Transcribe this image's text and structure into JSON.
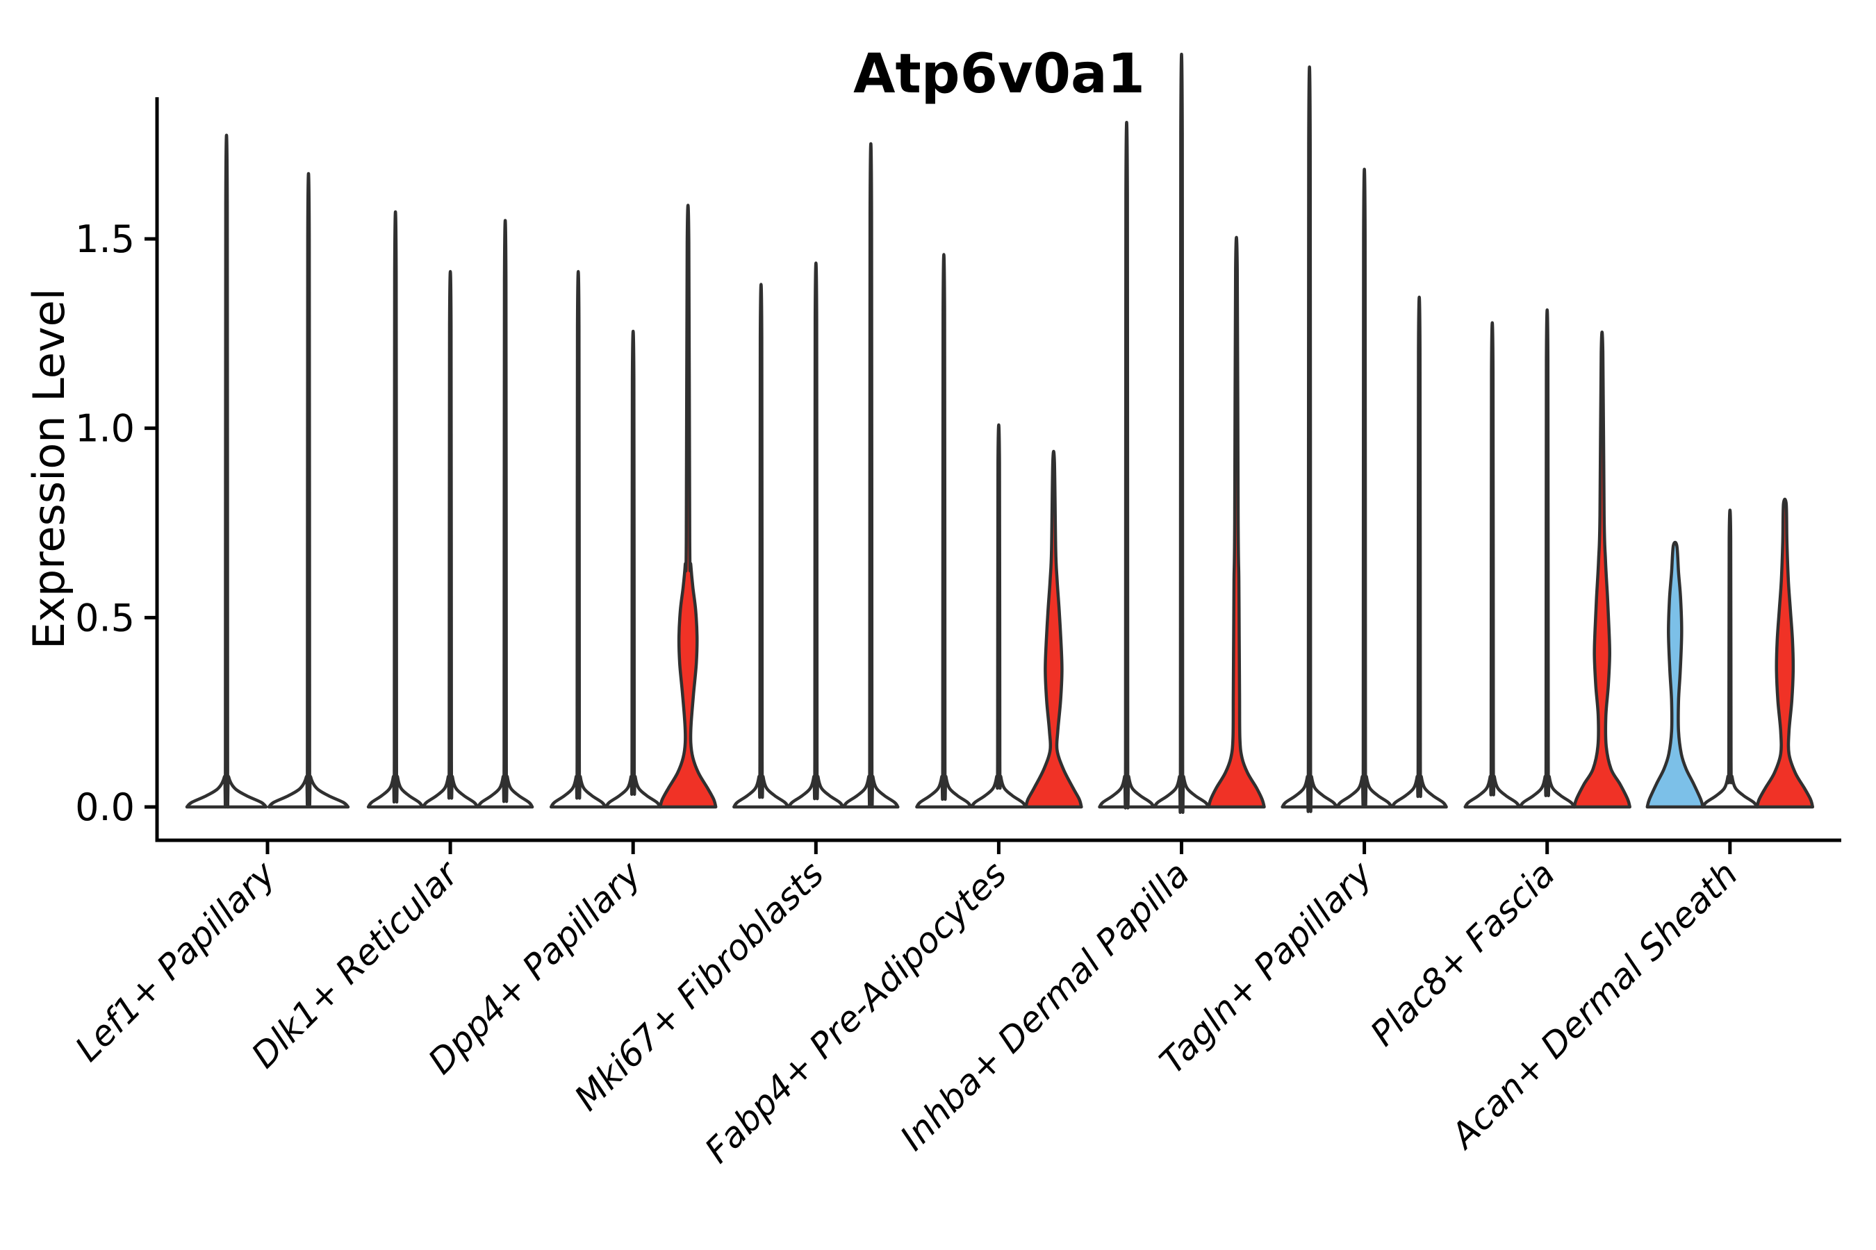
{
  "title": "Atp6v0a1",
  "chart_data": {
    "type": "violin",
    "title": "Atp6v0a1",
    "xlabel": "",
    "ylabel": "Expression Level",
    "yticks": [
      "0.0",
      "0.5",
      "1.0",
      "1.5"
    ],
    "ytick_values": [
      0.0,
      0.5,
      1.0,
      1.5
    ],
    "ylim": [
      -0.09,
      1.87
    ],
    "grid": "off",
    "legend": "none",
    "x_tick_rotation": 45,
    "colors": {
      "highlight_red": "#f03226",
      "highlight_blue": "#7cc0e8",
      "violin_outline": "#303030",
      "plain_fill": "#ffffff",
      "axis": "#000000"
    },
    "categories": [
      "Lef1+ Papillary",
      "Dlk1+ Reticular",
      "Dpp4+ Papillary",
      "Mki67+ Fibroblasts",
      "Fabp4+ Pre-Adipocytes",
      "Inhba+ Dermal Papilla",
      "Tagln+ Papillary",
      "Plac8+ Fascia",
      "Acan+ Dermal Sheath"
    ],
    "groups": [
      {
        "category": "Lef1+ Papillary",
        "violins": [
          {
            "max": 1.59,
            "color": "plain"
          },
          {
            "max": 1.5,
            "color": "plain"
          }
        ]
      },
      {
        "category": "Dlk1+ Reticular",
        "violins": [
          {
            "max": 1.41,
            "color": "plain"
          },
          {
            "max": 1.27,
            "color": "plain"
          },
          {
            "max": 1.39,
            "color": "plain"
          }
        ]
      },
      {
        "category": "Dpp4+ Papillary",
        "violins": [
          {
            "max": 1.27,
            "color": "plain"
          },
          {
            "max": 1.13,
            "color": "plain"
          },
          {
            "max": 1.49,
            "color": "red",
            "profile": [
              [
                0,
                40
              ],
              [
                0.02,
                37
              ],
              [
                0.05,
                28
              ],
              [
                0.09,
                15
              ],
              [
                0.13,
                7
              ],
              [
                0.17,
                4
              ],
              [
                0.22,
                4.5
              ],
              [
                0.3,
                8
              ],
              [
                0.38,
                12
              ],
              [
                0.45,
                13
              ],
              [
                0.52,
                11
              ],
              [
                0.58,
                7
              ],
              [
                0.64,
                4
              ],
              [
                0.7,
                2.5
              ],
              [
                1.49,
                1.2
              ]
            ]
          }
        ]
      },
      {
        "category": "Mki67+ Fibroblasts",
        "violins": [
          {
            "max": 1.24,
            "color": "plain"
          },
          {
            "max": 1.29,
            "color": "plain"
          },
          {
            "max": 1.57,
            "color": "plain"
          }
        ]
      },
      {
        "category": "Fabp4+ Pre-Adipocytes",
        "violins": [
          {
            "max": 1.31,
            "color": "plain"
          },
          {
            "max": 0.91,
            "color": "plain"
          },
          {
            "max": 0.91,
            "color": "red",
            "profile": [
              [
                0,
                40
              ],
              [
                0.02,
                37
              ],
              [
                0.05,
                28
              ],
              [
                0.1,
                14
              ],
              [
                0.15,
                5
              ],
              [
                0.2,
                6
              ],
              [
                0.28,
                10
              ],
              [
                0.36,
                12
              ],
              [
                0.44,
                10.5
              ],
              [
                0.52,
                8
              ],
              [
                0.6,
                5
              ],
              [
                0.68,
                3
              ],
              [
                0.91,
                1.2
              ]
            ]
          }
        ]
      },
      {
        "category": "Inhba+ Dermal Papilla",
        "violins": [
          {
            "max": 1.62,
            "color": "plain"
          },
          {
            "max": 1.78,
            "color": "plain"
          },
          {
            "max": 1.42,
            "color": "red",
            "profile": [
              [
                0,
                40
              ],
              [
                0.02,
                37
              ],
              [
                0.05,
                29
              ],
              [
                0.09,
                16
              ],
              [
                0.13,
                8
              ],
              [
                0.18,
                5
              ],
              [
                0.3,
                4.5
              ],
              [
                0.45,
                4
              ],
              [
                0.6,
                3.5
              ],
              [
                0.75,
                2.5
              ],
              [
                1.42,
                1.2
              ]
            ]
          }
        ]
      },
      {
        "category": "Tagln+ Papillary",
        "violins": [
          {
            "max": 1.75,
            "color": "plain"
          },
          {
            "max": 1.51,
            "color": "plain"
          },
          {
            "max": 1.21,
            "color": "plain"
          }
        ]
      },
      {
        "category": "Plac8+ Fascia",
        "violins": [
          {
            "max": 1.15,
            "color": "plain"
          },
          {
            "max": 1.18,
            "color": "plain"
          },
          {
            "max": 1.2,
            "color": "red",
            "profile": [
              [
                0,
                40
              ],
              [
                0.02,
                37
              ],
              [
                0.06,
                26
              ],
              [
                0.1,
                13
              ],
              [
                0.16,
                6
              ],
              [
                0.24,
                5.5
              ],
              [
                0.32,
                9
              ],
              [
                0.4,
                11
              ],
              [
                0.47,
                10
              ],
              [
                0.55,
                8
              ],
              [
                0.65,
                5
              ],
              [
                0.77,
                3
              ],
              [
                1.2,
                1.2
              ]
            ]
          }
        ]
      },
      {
        "category": "Acan+ Dermal Sheath",
        "violins": [
          {
            "max": 0.69,
            "color": "blue",
            "profile": [
              [
                0,
                40
              ],
              [
                0.02,
                37
              ],
              [
                0.06,
                27
              ],
              [
                0.1,
                16
              ],
              [
                0.14,
                9
              ],
              [
                0.2,
                5
              ],
              [
                0.28,
                5
              ],
              [
                0.36,
                7.5
              ],
              [
                0.46,
                9.5
              ],
              [
                0.55,
                8
              ],
              [
                0.62,
                5
              ],
              [
                0.69,
                2.5
              ]
            ]
          },
          {
            "max": 0.71,
            "color": "plain"
          },
          {
            "max": 0.8,
            "color": "red",
            "profile": [
              [
                0,
                40
              ],
              [
                0.02,
                37
              ],
              [
                0.05,
                28
              ],
              [
                0.09,
                15
              ],
              [
                0.14,
                6
              ],
              [
                0.2,
                6
              ],
              [
                0.28,
                10
              ],
              [
                0.36,
                12
              ],
              [
                0.44,
                11
              ],
              [
                0.52,
                8
              ],
              [
                0.6,
                5
              ],
              [
                0.7,
                3
              ],
              [
                0.8,
                2
              ]
            ]
          }
        ]
      }
    ]
  }
}
